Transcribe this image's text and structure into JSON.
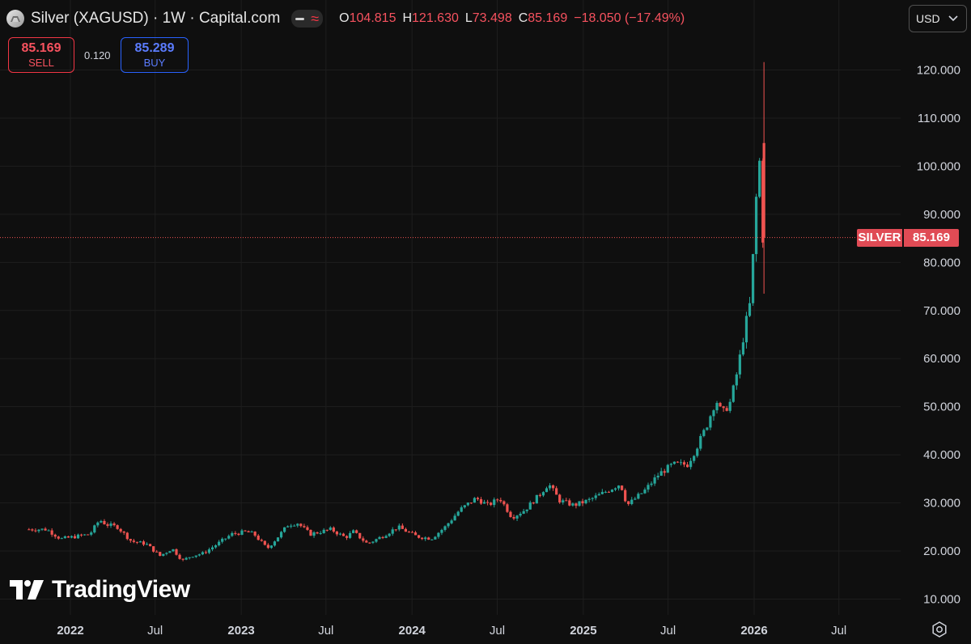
{
  "header": {
    "title": "Silver (XAGUSD) · 1W · Capital.com",
    "ohlc": [
      {
        "key": "O",
        "value": "104.815"
      },
      {
        "key": "H",
        "value": "121.630"
      },
      {
        "key": "L",
        "value": "73.498"
      },
      {
        "key": "C",
        "value": "85.169"
      }
    ],
    "change": "−18.050 (−17.49%)"
  },
  "trade": {
    "sell_price": "85.169",
    "sell_label": "SELL",
    "spread": "0.120",
    "buy_price": "85.289",
    "buy_label": "BUY"
  },
  "currency": "USD",
  "watermark": "TradingView",
  "price_tag": {
    "name": "SILVER",
    "value": "85.169"
  },
  "colors": {
    "up": "#26a69a",
    "down": "#ef5350",
    "background": "#0f0f0f",
    "grid": "#1e1e1e",
    "sell": "#f23645",
    "buy": "#2962ff"
  },
  "chart_data": {
    "type": "candlestick",
    "title": "Silver (XAGUSD) · 1W · Capital.com",
    "y_ticks": [
      "10.000",
      "20.000",
      "30.000",
      "40.000",
      "50.000",
      "60.000",
      "70.000",
      "80.000",
      "90.000",
      "100.000",
      "110.000",
      "120.000"
    ],
    "x_ticks": [
      "2022",
      "Jul",
      "2023",
      "Jul",
      "2024",
      "Jul",
      "2025",
      "Jul",
      "2026",
      "Jul"
    ],
    "x_range": [
      "2021-10",
      "2026-09"
    ],
    "grid": true,
    "last_price": 85.169,
    "last_price_label": "SILVER",
    "price_path": [
      [
        "2021-10-01",
        24.5
      ],
      [
        "2021-11-15",
        24.5
      ],
      [
        "2021-12-15",
        22.5
      ],
      [
        "2022-01-15",
        23.0
      ],
      [
        "2022-02-15",
        23.5
      ],
      [
        "2022-03-08",
        26.5
      ],
      [
        "2022-03-22",
        25.5
      ],
      [
        "2022-04-15",
        25.0
      ],
      [
        "2022-05-15",
        22.0
      ],
      [
        "2022-06-15",
        21.5
      ],
      [
        "2022-07-15",
        19.0
      ],
      [
        "2022-08-10",
        20.5
      ],
      [
        "2022-09-01",
        18.0
      ],
      [
        "2022-09-20",
        19.0
      ],
      [
        "2022-10-15",
        19.5
      ],
      [
        "2022-11-15",
        21.5
      ],
      [
        "2022-12-15",
        23.5
      ],
      [
        "2023-01-15",
        24.0
      ],
      [
        "2023-02-01",
        23.5
      ],
      [
        "2023-03-01",
        20.5
      ],
      [
        "2023-03-20",
        22.5
      ],
      [
        "2023-04-15",
        25.5
      ],
      [
        "2023-05-05",
        25.8
      ],
      [
        "2023-06-01",
        23.5
      ],
      [
        "2023-07-15",
        24.5
      ],
      [
        "2023-08-15",
        22.8
      ],
      [
        "2023-09-01",
        24.0
      ],
      [
        "2023-10-01",
        21.5
      ],
      [
        "2023-11-01",
        23.0
      ],
      [
        "2023-12-05",
        25.0
      ],
      [
        "2024-01-15",
        23.0
      ],
      [
        "2024-02-15",
        22.6
      ],
      [
        "2024-03-15",
        25.0
      ],
      [
        "2024-04-15",
        28.5
      ],
      [
        "2024-05-20",
        31.0
      ],
      [
        "2024-06-15",
        29.5
      ],
      [
        "2024-07-10",
        31.0
      ],
      [
        "2024-08-05",
        27.0
      ],
      [
        "2024-09-01",
        28.5
      ],
      [
        "2024-10-01",
        31.5
      ],
      [
        "2024-10-22",
        34.0
      ],
      [
        "2024-11-15",
        30.5
      ],
      [
        "2024-12-15",
        29.5
      ],
      [
        "2025-01-15",
        30.5
      ],
      [
        "2025-02-15",
        32.0
      ],
      [
        "2025-03-25",
        34.0
      ],
      [
        "2025-04-08",
        29.5
      ],
      [
        "2025-05-15",
        32.5
      ],
      [
        "2025-06-15",
        36.0
      ],
      [
        "2025-07-15",
        38.0
      ],
      [
        "2025-08-15",
        38.0
      ],
      [
        "2025-09-01",
        41.0
      ],
      [
        "2025-09-25",
        46.0
      ],
      [
        "2025-10-15",
        51.5
      ],
      [
        "2025-10-28",
        48.5
      ],
      [
        "2025-11-15",
        51.0
      ],
      [
        "2025-12-01",
        58.0
      ],
      [
        "2025-12-15",
        66.0
      ],
      [
        "2025-12-28",
        72.0
      ],
      [
        "2026-01-07",
        90.0
      ],
      [
        "2026-01-15",
        103.5
      ],
      [
        "2026-01-22",
        85.2
      ]
    ],
    "last_candle": {
      "open": 104.815,
      "high": 121.63,
      "low": 73.498,
      "close": 85.169
    }
  }
}
